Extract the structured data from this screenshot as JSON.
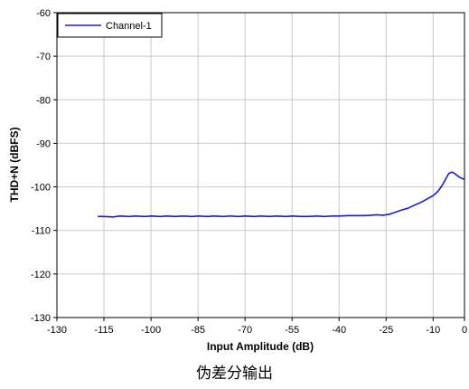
{
  "chart_data": {
    "type": "line",
    "title": "",
    "xlabel": "Input Amplitude (dB)",
    "ylabel": "THD+N (dBFS)",
    "xlim": [
      -130,
      0
    ],
    "ylim": [
      -130,
      -60
    ],
    "xticks": [
      -130,
      -115,
      -100,
      -85,
      -70,
      -55,
      -40,
      -25,
      -10,
      0
    ],
    "yticks": [
      -60,
      -70,
      -80,
      -90,
      -100,
      -110,
      -120,
      -130
    ],
    "grid": true,
    "legend_position": "top-left",
    "series": [
      {
        "name": "Channel-1",
        "color": "#1a1adb",
        "x": [
          -117,
          -115,
          -112,
          -110,
          -107,
          -105,
          -102,
          -100,
          -97,
          -95,
          -92,
          -90,
          -87,
          -85,
          -82,
          -80,
          -77,
          -75,
          -72,
          -70,
          -67,
          -65,
          -62,
          -60,
          -57,
          -55,
          -52,
          -50,
          -47,
          -45,
          -42,
          -40,
          -37,
          -35,
          -32,
          -30,
          -28,
          -26,
          -24,
          -22,
          -20,
          -18,
          -16,
          -14,
          -12,
          -10,
          -9,
          -8,
          -7,
          -6,
          -5,
          -4,
          -3,
          -2,
          -1,
          0
        ],
        "y": [
          -106.8,
          -106.8,
          -106.9,
          -106.7,
          -106.8,
          -106.7,
          -106.8,
          -106.7,
          -106.8,
          -106.7,
          -106.8,
          -106.7,
          -106.8,
          -106.7,
          -106.8,
          -106.7,
          -106.8,
          -106.7,
          -106.8,
          -106.7,
          -106.8,
          -106.7,
          -106.8,
          -106.7,
          -106.8,
          -106.7,
          -106.8,
          -106.8,
          -106.7,
          -106.8,
          -106.7,
          -106.7,
          -106.6,
          -106.6,
          -106.6,
          -106.5,
          -106.4,
          -106.5,
          -106.3,
          -105.8,
          -105.3,
          -104.9,
          -104.2,
          -103.6,
          -102.8,
          -102.0,
          -101.4,
          -100.6,
          -99.5,
          -98.2,
          -96.9,
          -96.6,
          -97.0,
          -97.6,
          -98.0,
          -98.3
        ]
      }
    ]
  },
  "caption": "伪差分输出"
}
